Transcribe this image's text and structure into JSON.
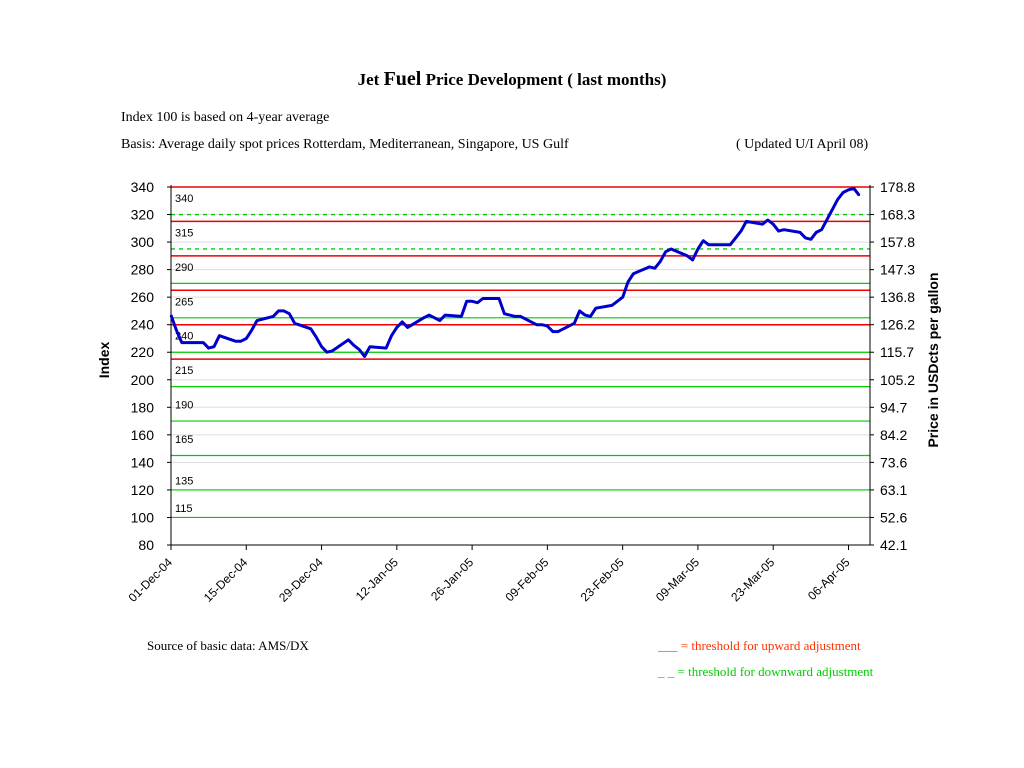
{
  "header": {
    "title_a": "Jet ",
    "title_b": "Fuel",
    "title_c": " Price Development ( last months)",
    "index_note": "Index 100 is based on 4-year average",
    "basis_note": "Basis: Average daily spot prices Rotterdam, Mediterranean, Singapore, US Gulf",
    "updated_note": "( Updated U/I April 08)"
  },
  "footer": {
    "source": "Source of basic data: AMS/DX",
    "legend_up": "___ = threshold for upward adjustment",
    "legend_down": "_  _ = threshold for downward adjustment"
  },
  "colors": {
    "series": "#0000cc",
    "upper_threshold": "#ee0000",
    "lower_threshold": "#00cc00",
    "axis": "#000000",
    "gridline": "#dddddd"
  },
  "chart_data": {
    "type": "line",
    "title": "Jet Fuel Price Development ( last months)",
    "ylabel": "Index",
    "y2label": "Price in USDcts per gallon",
    "ylim": [
      80,
      340
    ],
    "y_ticks": [
      80,
      100,
      120,
      140,
      160,
      180,
      200,
      220,
      240,
      260,
      280,
      300,
      320,
      340
    ],
    "y2_ticks": [
      "42.1",
      "52.6",
      "63.1",
      "73.6",
      "84.2",
      "94.7",
      "105.2",
      "115.7",
      "126.2",
      "136.8",
      "147.3",
      "157.8",
      "168.3",
      "178.8"
    ],
    "x_range": [
      "2004-12-01",
      "2005-04-10"
    ],
    "x_ticks": [
      "01-Dec-04",
      "15-Dec-04",
      "29-Dec-04",
      "12-Jan-05",
      "26-Jan-05",
      "09-Feb-05",
      "23-Feb-05",
      "09-Mar-05",
      "23-Mar-05",
      "06-Apr-05"
    ],
    "grid": "horizontal",
    "threshold_labels": [
      "340",
      "315",
      "290",
      "265",
      "240",
      "215",
      "190",
      "165",
      "135",
      "115"
    ],
    "upper_thresholds": [
      340,
      315,
      290,
      265,
      240,
      215
    ],
    "lower_thresholds_dashed": [
      320,
      295
    ],
    "lower_thresholds_solid": [
      270,
      245,
      220,
      195,
      170,
      145,
      120,
      100
    ],
    "series": [
      {
        "x": [
          "2004-12-01",
          "2004-12-02",
          "2004-12-03",
          "2004-12-06",
          "2004-12-07",
          "2004-12-08",
          "2004-12-09",
          "2004-12-10",
          "2004-12-13",
          "2004-12-14",
          "2004-12-15",
          "2004-12-16",
          "2004-12-17",
          "2004-12-20",
          "2004-12-21",
          "2004-12-22",
          "2004-12-23",
          "2004-12-24",
          "2004-12-27",
          "2004-12-28",
          "2004-12-29",
          "2004-12-30",
          "2004-12-31",
          "2005-01-03",
          "2005-01-04",
          "2005-01-05",
          "2005-01-06",
          "2005-01-07",
          "2005-01-10",
          "2005-01-11",
          "2005-01-12",
          "2005-01-13",
          "2005-01-14",
          "2005-01-17",
          "2005-01-18",
          "2005-01-19",
          "2005-01-20",
          "2005-01-21",
          "2005-01-24",
          "2005-01-25",
          "2005-01-26",
          "2005-01-27",
          "2005-01-28",
          "2005-01-31",
          "2005-02-01",
          "2005-02-02",
          "2005-02-03",
          "2005-02-04",
          "2005-02-07",
          "2005-02-08",
          "2005-02-09",
          "2005-02-10",
          "2005-02-11",
          "2005-02-14",
          "2005-02-15",
          "2005-02-16",
          "2005-02-17",
          "2005-02-18",
          "2005-02-21",
          "2005-02-22",
          "2005-02-23",
          "2005-02-24",
          "2005-02-25",
          "2005-02-28",
          "2005-03-01",
          "2005-03-02",
          "2005-03-03",
          "2005-03-04",
          "2005-03-07",
          "2005-03-08",
          "2005-03-09",
          "2005-03-10",
          "2005-03-11",
          "2005-03-14",
          "2005-03-15",
          "2005-03-16",
          "2005-03-17",
          "2005-03-18",
          "2005-03-21",
          "2005-03-22",
          "2005-03-23",
          "2005-03-24",
          "2005-03-25",
          "2005-03-28",
          "2005-03-29",
          "2005-03-30",
          "2005-03-31",
          "2005-04-01",
          "2005-04-04",
          "2005-04-05",
          "2005-04-06",
          "2005-04-07",
          "2005-04-08"
        ],
        "values": [
          247,
          236,
          227,
          227,
          227,
          223,
          224,
          232,
          228,
          228,
          230,
          236,
          243,
          246,
          250,
          250,
          248,
          241,
          237,
          231,
          224,
          220,
          221,
          229,
          225,
          222,
          217,
          224,
          223,
          232,
          238,
          242,
          238,
          245,
          247,
          245,
          243,
          247,
          246,
          257,
          257,
          256,
          259,
          259,
          248,
          247,
          246,
          246,
          240,
          240,
          239,
          235,
          235,
          241,
          250,
          247,
          246,
          252,
          254,
          257,
          260,
          271,
          277,
          282,
          281,
          286,
          293,
          295,
          290,
          287,
          295,
          301,
          298,
          298,
          298,
          303,
          308,
          315,
          313,
          316,
          313,
          308,
          309,
          307,
          303,
          302,
          307,
          309,
          331,
          336,
          338,
          339,
          334
        ]
      }
    ]
  }
}
